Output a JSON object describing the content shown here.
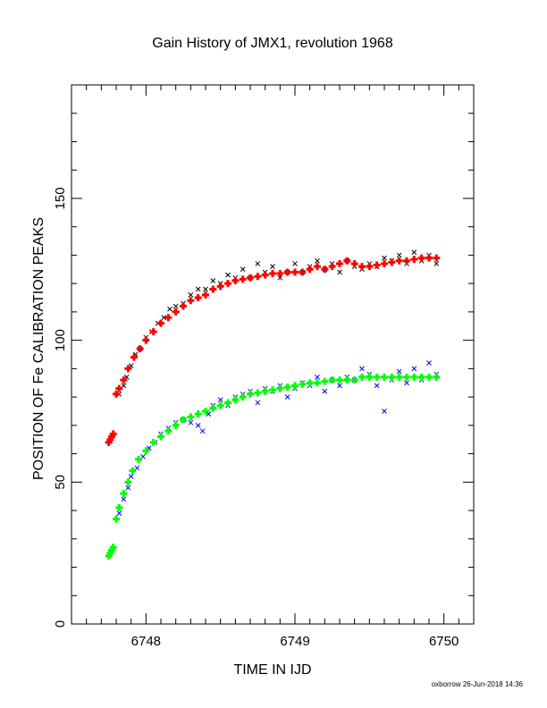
{
  "chart_data": {
    "type": "scatter",
    "title": "Gain History of JMX1, revolution 1968",
    "xlabel": "TIME IN IJD",
    "ylabel": "POSITION OF Fe CALIBRATION PEAKS",
    "xlim": [
      6747.5,
      6750.2
    ],
    "ylim": [
      0,
      190
    ],
    "x_ticks": [
      6748,
      6749,
      6750
    ],
    "y_ticks": [
      0,
      50,
      100,
      150
    ],
    "x_tick_labels": [
      "6748",
      "6749",
      "6750"
    ],
    "y_tick_labels": [
      "0",
      "50",
      "100",
      "150"
    ],
    "grid": false,
    "series": [
      {
        "color": "#000000",
        "marker": "x",
        "points": [
          [
            6747.82,
            81
          ],
          [
            6747.85,
            84
          ],
          [
            6747.87,
            87
          ],
          [
            6747.9,
            91
          ],
          [
            6747.93,
            95
          ],
          [
            6747.96,
            97
          ],
          [
            6748.0,
            101
          ],
          [
            6748.04,
            103
          ],
          [
            6748.08,
            106
          ],
          [
            6748.12,
            108
          ],
          [
            6748.16,
            111
          ],
          [
            6748.2,
            112
          ],
          [
            6748.25,
            113
          ],
          [
            6748.3,
            116
          ],
          [
            6748.35,
            118
          ],
          [
            6748.4,
            118
          ],
          [
            6748.45,
            121
          ],
          [
            6748.5,
            120
          ],
          [
            6748.55,
            123
          ],
          [
            6748.6,
            122
          ],
          [
            6748.65,
            125
          ],
          [
            6748.7,
            122
          ],
          [
            6748.75,
            127
          ],
          [
            6748.8,
            124
          ],
          [
            6748.85,
            126
          ],
          [
            6748.9,
            122
          ],
          [
            6748.95,
            124
          ],
          [
            6749.0,
            127
          ],
          [
            6749.05,
            124
          ],
          [
            6749.1,
            126
          ],
          [
            6749.15,
            128
          ],
          [
            6749.2,
            125
          ],
          [
            6749.25,
            127
          ],
          [
            6749.3,
            124
          ],
          [
            6749.35,
            128
          ],
          [
            6749.4,
            126
          ],
          [
            6749.45,
            125
          ],
          [
            6749.5,
            127
          ],
          [
            6749.55,
            126
          ],
          [
            6749.6,
            129
          ],
          [
            6749.65,
            128
          ],
          [
            6749.7,
            130
          ],
          [
            6749.75,
            127
          ],
          [
            6749.8,
            131
          ],
          [
            6749.85,
            128
          ],
          [
            6749.9,
            130
          ],
          [
            6749.95,
            127
          ]
        ]
      },
      {
        "color": "#ff0000",
        "marker": "+",
        "points": [
          [
            6747.75,
            64
          ],
          [
            6747.76,
            65
          ],
          [
            6747.77,
            66
          ],
          [
            6747.78,
            67
          ],
          [
            6747.8,
            81
          ],
          [
            6747.82,
            83
          ],
          [
            6747.85,
            86
          ],
          [
            6747.88,
            90
          ],
          [
            6747.92,
            94
          ],
          [
            6747.96,
            97
          ],
          [
            6748.0,
            100
          ],
          [
            6748.05,
            103
          ],
          [
            6748.1,
            106
          ],
          [
            6748.15,
            108
          ],
          [
            6748.2,
            110
          ],
          [
            6748.25,
            112
          ],
          [
            6748.3,
            114
          ],
          [
            6748.35,
            115
          ],
          [
            6748.4,
            116
          ],
          [
            6748.45,
            118
          ],
          [
            6748.5,
            119
          ],
          [
            6748.55,
            120
          ],
          [
            6748.6,
            121
          ],
          [
            6748.65,
            121.5
          ],
          [
            6748.7,
            122
          ],
          [
            6748.75,
            122.5
          ],
          [
            6748.8,
            123
          ],
          [
            6748.85,
            123.5
          ],
          [
            6748.9,
            123.5
          ],
          [
            6748.95,
            124
          ],
          [
            6749.0,
            124
          ],
          [
            6749.05,
            124
          ],
          [
            6749.1,
            125
          ],
          [
            6749.15,
            126
          ],
          [
            6749.2,
            125
          ],
          [
            6749.25,
            126
          ],
          [
            6749.3,
            127
          ],
          [
            6749.35,
            128
          ],
          [
            6749.4,
            127
          ],
          [
            6749.45,
            126
          ],
          [
            6749.5,
            126
          ],
          [
            6749.55,
            126.5
          ],
          [
            6749.6,
            127
          ],
          [
            6749.65,
            127.5
          ],
          [
            6749.7,
            128
          ],
          [
            6749.75,
            128
          ],
          [
            6749.8,
            128.5
          ],
          [
            6749.85,
            129
          ],
          [
            6749.9,
            129
          ],
          [
            6749.95,
            129
          ]
        ]
      },
      {
        "color": "#0000ff",
        "marker": "x",
        "points": [
          [
            6747.82,
            39
          ],
          [
            6747.85,
            44
          ],
          [
            6747.88,
            48
          ],
          [
            6747.9,
            52
          ],
          [
            6747.94,
            55
          ],
          [
            6747.98,
            59
          ],
          [
            6748.02,
            62
          ],
          [
            6748.06,
            64
          ],
          [
            6748.1,
            67
          ],
          [
            6748.15,
            69
          ],
          [
            6748.2,
            71
          ],
          [
            6748.25,
            72
          ],
          [
            6748.3,
            71
          ],
          [
            6748.35,
            70
          ],
          [
            6748.38,
            68
          ],
          [
            6748.42,
            74
          ],
          [
            6748.45,
            77
          ],
          [
            6748.5,
            79
          ],
          [
            6748.55,
            77
          ],
          [
            6748.6,
            80
          ],
          [
            6748.65,
            81
          ],
          [
            6748.7,
            82
          ],
          [
            6748.75,
            78
          ],
          [
            6748.8,
            83
          ],
          [
            6748.85,
            82
          ],
          [
            6748.9,
            84
          ],
          [
            6748.95,
            80
          ],
          [
            6749.0,
            83
          ],
          [
            6749.05,
            85
          ],
          [
            6749.1,
            84
          ],
          [
            6749.15,
            87
          ],
          [
            6749.2,
            82
          ],
          [
            6749.25,
            86
          ],
          [
            6749.3,
            84
          ],
          [
            6749.35,
            87
          ],
          [
            6749.4,
            86
          ],
          [
            6749.45,
            90
          ],
          [
            6749.5,
            88
          ],
          [
            6749.55,
            84
          ],
          [
            6749.6,
            75
          ],
          [
            6749.65,
            86
          ],
          [
            6749.7,
            89
          ],
          [
            6749.75,
            85
          ],
          [
            6749.8,
            90
          ],
          [
            6749.85,
            86
          ],
          [
            6749.9,
            92
          ],
          [
            6749.95,
            88
          ]
        ]
      },
      {
        "color": "#00ff00",
        "marker": "+",
        "points": [
          [
            6747.75,
            24
          ],
          [
            6747.76,
            25
          ],
          [
            6747.77,
            26
          ],
          [
            6747.78,
            27
          ],
          [
            6747.8,
            37
          ],
          [
            6747.82,
            41
          ],
          [
            6747.85,
            46
          ],
          [
            6747.88,
            50
          ],
          [
            6747.91,
            54
          ],
          [
            6747.95,
            58
          ],
          [
            6748.0,
            61
          ],
          [
            6748.05,
            64
          ],
          [
            6748.1,
            66
          ],
          [
            6748.15,
            68
          ],
          [
            6748.2,
            70
          ],
          [
            6748.25,
            72
          ],
          [
            6748.3,
            73
          ],
          [
            6748.35,
            74
          ],
          [
            6748.4,
            75
          ],
          [
            6748.45,
            76
          ],
          [
            6748.5,
            77
          ],
          [
            6748.55,
            78
          ],
          [
            6748.6,
            79
          ],
          [
            6748.65,
            80
          ],
          [
            6748.7,
            81
          ],
          [
            6748.75,
            81.5
          ],
          [
            6748.8,
            82
          ],
          [
            6748.85,
            82.5
          ],
          [
            6748.9,
            83
          ],
          [
            6748.95,
            83.5
          ],
          [
            6749.0,
            84
          ],
          [
            6749.05,
            84.5
          ],
          [
            6749.1,
            85
          ],
          [
            6749.15,
            85
          ],
          [
            6749.2,
            85.5
          ],
          [
            6749.25,
            86
          ],
          [
            6749.3,
            86
          ],
          [
            6749.35,
            86
          ],
          [
            6749.4,
            86
          ],
          [
            6749.45,
            87
          ],
          [
            6749.5,
            87
          ],
          [
            6749.55,
            87
          ],
          [
            6749.6,
            87
          ],
          [
            6749.65,
            87
          ],
          [
            6749.7,
            87
          ],
          [
            6749.75,
            87
          ],
          [
            6749.8,
            87
          ],
          [
            6749.85,
            87
          ],
          [
            6749.9,
            87
          ],
          [
            6749.95,
            87
          ]
        ]
      }
    ]
  },
  "footer": "oxborrow 26-Jun-2018 14:36"
}
